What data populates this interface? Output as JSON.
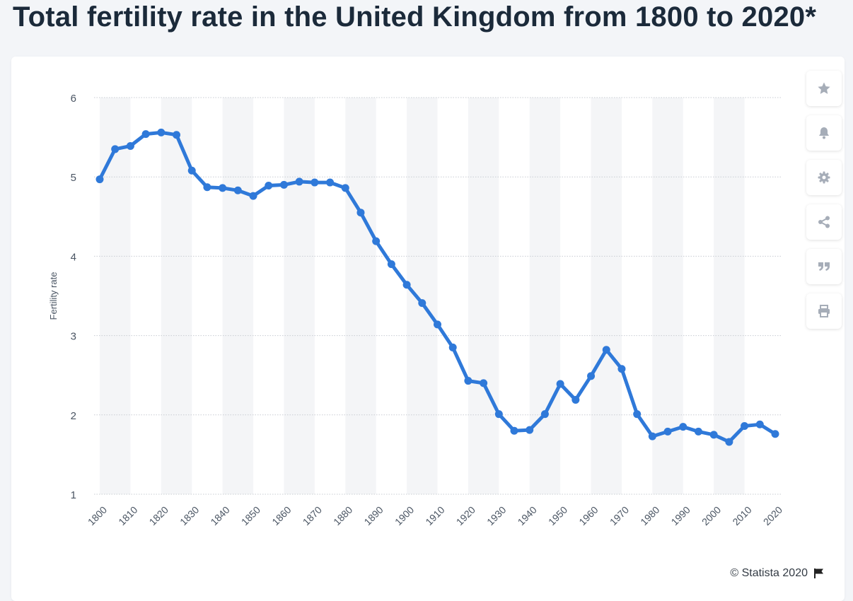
{
  "title": "Total fertility rate in the United Kingdom from 1800 to 2020*",
  "credit": "© Statista 2020",
  "colors": {
    "line": "#2f79d9",
    "band": "#f4f5f7",
    "grid": "#c8ccd2",
    "text": "#4a5563",
    "icon": "#a6adb8"
  },
  "toolbar": {
    "buttons": [
      {
        "name": "favorite-button",
        "icon": "star-icon"
      },
      {
        "name": "notification-button",
        "icon": "bell-icon"
      },
      {
        "name": "settings-button",
        "icon": "gear-icon"
      },
      {
        "name": "share-button",
        "icon": "share-icon"
      },
      {
        "name": "cite-button",
        "icon": "quote-icon"
      },
      {
        "name": "print-button",
        "icon": "print-icon"
      }
    ]
  },
  "chart_data": {
    "type": "line",
    "title": "",
    "xlabel": "",
    "ylabel": "Fertility rate",
    "ylim": [
      1,
      6
    ],
    "yticks": [
      1,
      2,
      3,
      4,
      5,
      6
    ],
    "xlim": [
      1800,
      2020
    ],
    "xticks": [
      "1800",
      "1810",
      "1820",
      "1830",
      "1840",
      "1850",
      "1860",
      "1870",
      "1880",
      "1890",
      "1900",
      "1910",
      "1920",
      "1930",
      "1940",
      "1950",
      "1960",
      "1970",
      "1980",
      "1990",
      "2000",
      "2010",
      "2020"
    ],
    "grid": true,
    "series": [
      {
        "x": [
          1800,
          1805,
          1810,
          1815,
          1820,
          1825,
          1830,
          1835,
          1840,
          1845,
          1850,
          1855,
          1860,
          1865,
          1870,
          1875,
          1880,
          1885,
          1890,
          1895,
          1900,
          1905,
          1910,
          1915,
          1920,
          1925,
          1930,
          1935,
          1940,
          1945,
          1950,
          1955,
          1960,
          1965,
          1970,
          1975,
          1980,
          1985,
          1990,
          1995,
          2000,
          2005,
          2010,
          2015,
          2020
        ],
        "values": [
          4.97,
          5.35,
          5.39,
          5.54,
          5.56,
          5.53,
          5.08,
          4.87,
          4.86,
          4.83,
          4.76,
          4.89,
          4.9,
          4.94,
          4.93,
          4.93,
          4.86,
          4.55,
          4.19,
          3.9,
          3.64,
          3.41,
          3.14,
          2.85,
          2.43,
          2.4,
          2.01,
          1.8,
          1.81,
          2.01,
          2.39,
          2.19,
          2.49,
          2.82,
          2.58,
          2.01,
          1.73,
          1.79,
          1.85,
          1.79,
          1.75,
          1.66,
          1.86,
          1.88,
          1.76
        ]
      }
    ]
  }
}
